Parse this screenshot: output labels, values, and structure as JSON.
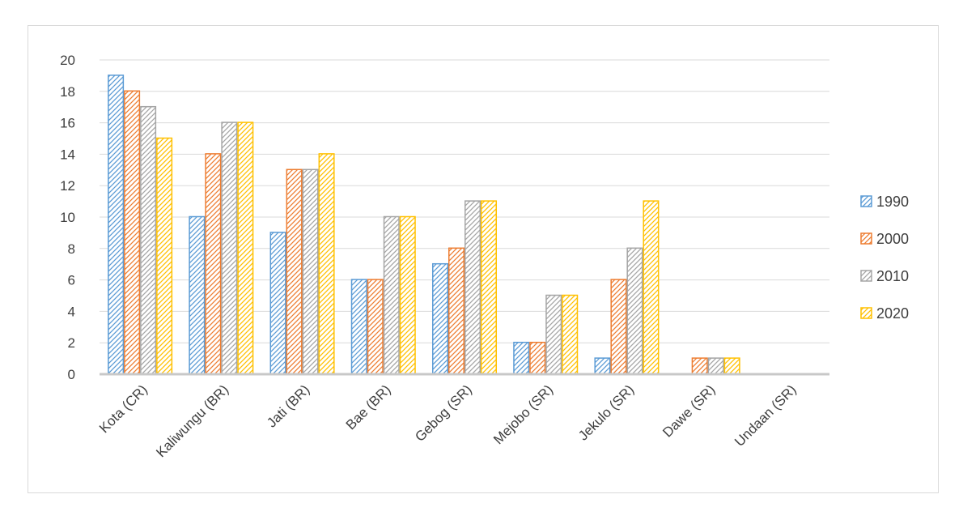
{
  "chart_data": {
    "type": "bar",
    "title": "",
    "xlabel": "",
    "ylabel": "",
    "ylim": [
      0,
      20
    ],
    "yticks": [
      "0",
      "2",
      "4",
      "6",
      "8",
      "10",
      "12",
      "14",
      "16",
      "18",
      "20"
    ],
    "grid": true,
    "legend_position": "right",
    "categories": [
      "Kota (CR)",
      "Kaliwungu (BR)",
      "Jati (BR)",
      "Bae (BR)",
      "Gebog (SR)",
      "Mejobo (SR)",
      "Jekulo (SR)",
      "Dawe (SR)",
      "Undaan (SR)"
    ],
    "series": [
      {
        "name": "1990",
        "color": "#5b9bd5",
        "values": [
          19,
          10,
          9,
          6,
          7,
          2,
          1,
          0,
          0
        ]
      },
      {
        "name": "2000",
        "color": "#ed7d31",
        "values": [
          18,
          14,
          13,
          6,
          8,
          2,
          6,
          1,
          0
        ]
      },
      {
        "name": "2010",
        "color": "#a5a5a5",
        "values": [
          17,
          16,
          13,
          10,
          11,
          5,
          8,
          1,
          0
        ]
      },
      {
        "name": "2020",
        "color": "#ffc000",
        "values": [
          15,
          16,
          14,
          10,
          11,
          5,
          11,
          1,
          0
        ]
      }
    ]
  }
}
